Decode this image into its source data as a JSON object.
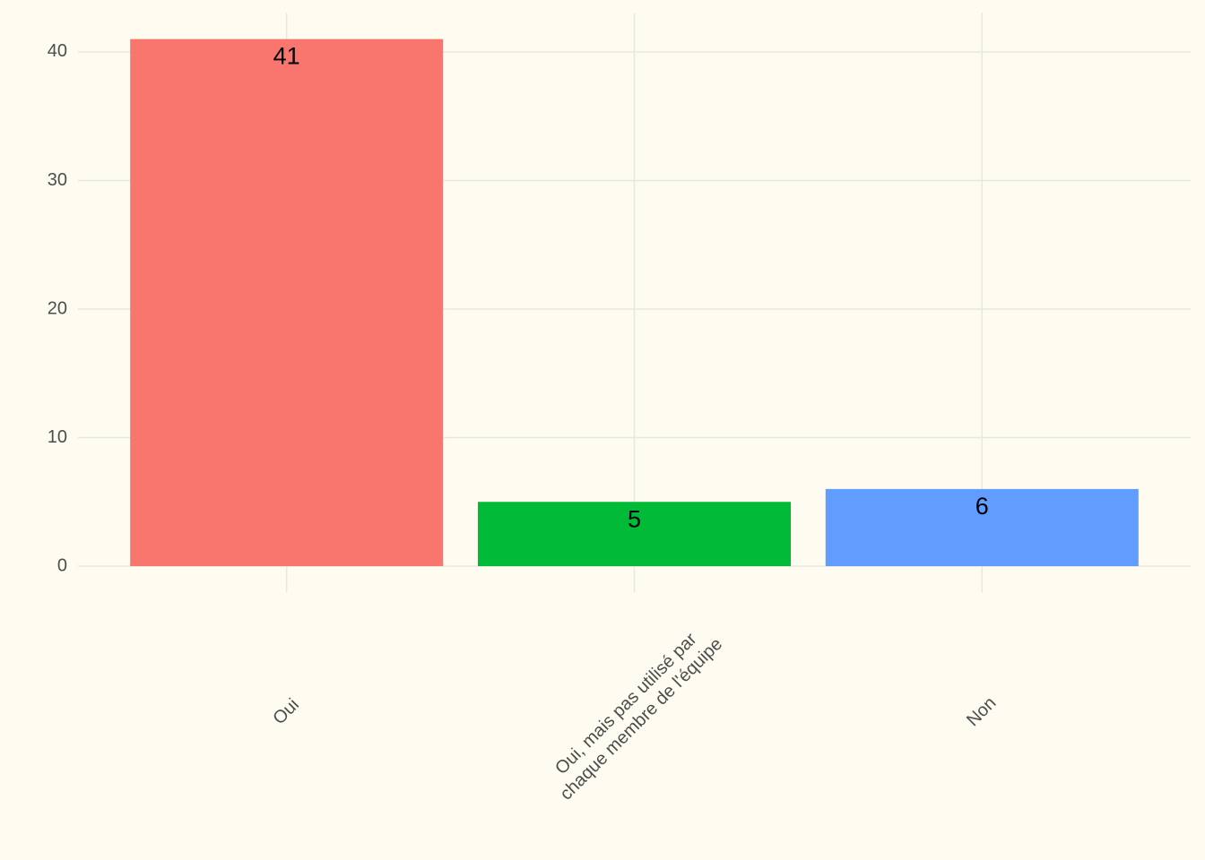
{
  "chart_data": {
    "type": "bar",
    "categories": [
      "Oui",
      "Oui, mais pas utilisé par\nchaque membre de l'équipe",
      "Non"
    ],
    "values": [
      41,
      5,
      6
    ],
    "colors": [
      "#f8766d",
      "#00ba38",
      "#619cff"
    ],
    "ylim": [
      -2.05,
      43.05
    ],
    "yticks": [
      0,
      10,
      20,
      30,
      40
    ],
    "grid": true
  }
}
